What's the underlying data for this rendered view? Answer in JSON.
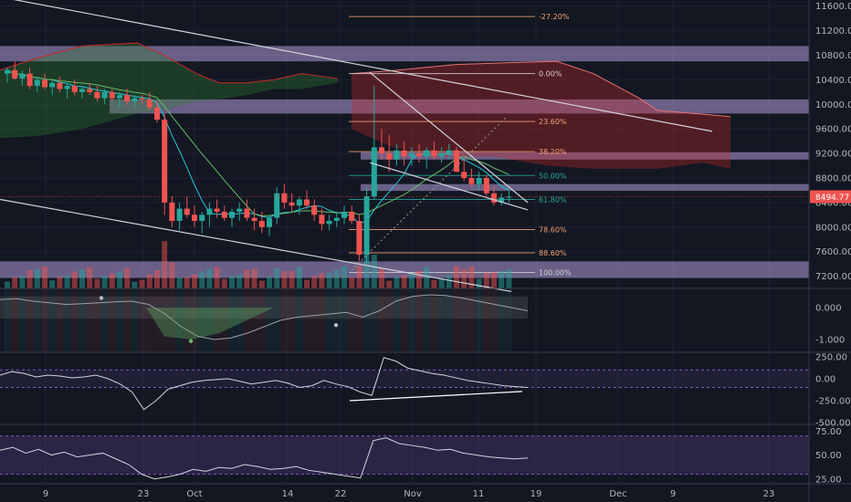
{
  "chart_data": [
    {
      "type": "candlestick",
      "title": "",
      "x_axis": {
        "tick_labels": [
          "9",
          "23",
          "Oct",
          "14",
          "22",
          "Nov",
          "11",
          "19",
          "Dec",
          "9",
          "23"
        ]
      },
      "y_axis": {
        "ylim": [
          7000,
          11700
        ],
        "tick_labels": [
          "11600.00",
          "11200.00",
          "10800.00",
          "10400.00",
          "10000.00",
          "9600.00",
          "9200.00",
          "8800.00",
          "8400.00",
          "8000.00",
          "7600.00",
          "7200.00"
        ]
      },
      "last_price": "8494.77",
      "last_price_value": 8494.77,
      "fibonacci_levels": [
        {
          "label": "-27.20%",
          "price": 11430,
          "color": "#f0a070"
        },
        {
          "label": "0.00%",
          "price": 10500,
          "color": "#d0d0d0"
        },
        {
          "label": "23.60%",
          "price": 9720,
          "color": "#f0a070"
        },
        {
          "label": "38.20%",
          "price": 9230,
          "color": "#f0a070"
        },
        {
          "label": "50.00%",
          "price": 8840,
          "color": "#26a69a"
        },
        {
          "label": "61.80%",
          "price": 8450,
          "color": "#26a69a"
        },
        {
          "label": "78.60%",
          "price": 7960,
          "color": "#f0a070"
        },
        {
          "label": "88.60%",
          "price": 7580,
          "color": "#f0a070"
        },
        {
          "label": "100.00%",
          "price": 7260,
          "color": "#d0d0d0"
        }
      ],
      "candles": [
        [
          10500,
          10600,
          10350,
          10560
        ],
        [
          10560,
          10700,
          10400,
          10420
        ],
        [
          10420,
          10550,
          10300,
          10500
        ],
        [
          10500,
          10600,
          10250,
          10300
        ],
        [
          10300,
          10450,
          10200,
          10400
        ],
        [
          10400,
          10500,
          10250,
          10280
        ],
        [
          10280,
          10400,
          10150,
          10350
        ],
        [
          10350,
          10450,
          10200,
          10250
        ],
        [
          10250,
          10350,
          10100,
          10300
        ],
        [
          10300,
          10400,
          10150,
          10200
        ],
        [
          10200,
          10300,
          10100,
          10250
        ],
        [
          10250,
          10350,
          10150,
          10200
        ],
        [
          10200,
          10300,
          10050,
          10100
        ],
        [
          10100,
          10250,
          10000,
          10200
        ],
        [
          10200,
          10250,
          10050,
          10100
        ],
        [
          10100,
          10200,
          9950,
          10150
        ],
        [
          10150,
          10250,
          10000,
          10050
        ],
        [
          10050,
          10150,
          9950,
          10100
        ],
        [
          10100,
          10150,
          10000,
          10080
        ],
        [
          10080,
          10200,
          9900,
          9950
        ],
        [
          9950,
          10050,
          9700,
          9750
        ],
        [
          9750,
          9850,
          8200,
          8400
        ],
        [
          8400,
          8500,
          8000,
          8100
        ],
        [
          8100,
          8400,
          7950,
          8300
        ],
        [
          8300,
          8500,
          8150,
          8200
        ],
        [
          8200,
          8350,
          8000,
          8100
        ],
        [
          8100,
          8250,
          7900,
          8200
        ],
        [
          8200,
          8400,
          8000,
          8300
        ],
        [
          8300,
          8450,
          8150,
          8250
        ],
        [
          8250,
          8350,
          8100,
          8150
        ],
        [
          8150,
          8300,
          8000,
          8250
        ],
        [
          8250,
          8400,
          8100,
          8300
        ],
        [
          8300,
          8450,
          8100,
          8150
        ],
        [
          8150,
          8300,
          7950,
          8100
        ],
        [
          8100,
          8250,
          7900,
          8000
        ],
        [
          8000,
          8200,
          7850,
          8150
        ],
        [
          8150,
          8650,
          8050,
          8550
        ],
        [
          8550,
          8700,
          8300,
          8400
        ],
        [
          8400,
          8550,
          8250,
          8350
        ],
        [
          8350,
          8500,
          8200,
          8450
        ],
        [
          8450,
          8600,
          8300,
          8350
        ],
        [
          8350,
          8450,
          8100,
          8200
        ],
        [
          8200,
          8300,
          7950,
          8050
        ],
        [
          8050,
          8200,
          7950,
          8100
        ],
        [
          8100,
          8250,
          8000,
          8150
        ],
        [
          8150,
          8350,
          8050,
          8250
        ],
        [
          8250,
          8350,
          8050,
          8100
        ],
        [
          8100,
          8200,
          7450,
          7550
        ],
        [
          7550,
          8650,
          7400,
          8500
        ],
        [
          8500,
          10300,
          8450,
          9300
        ],
        [
          9300,
          9600,
          9100,
          9200
        ],
        [
          9200,
          9500,
          8900,
          9100
        ],
        [
          9100,
          9350,
          9000,
          9250
        ],
        [
          9250,
          9400,
          9000,
          9150
        ],
        [
          9150,
          9300,
          9000,
          9200
        ],
        [
          9200,
          9350,
          9050,
          9150
        ],
        [
          9150,
          9300,
          8950,
          9250
        ],
        [
          9250,
          9400,
          9100,
          9150
        ],
        [
          9150,
          9300,
          9050,
          9200
        ],
        [
          9200,
          9350,
          9100,
          9250
        ],
        [
          9250,
          9300,
          8900,
          8900
        ],
        [
          8900,
          9100,
          8750,
          8800
        ],
        [
          8800,
          8950,
          8650,
          8700
        ],
        [
          8700,
          8900,
          8600,
          8800
        ],
        [
          8800,
          8850,
          8500,
          8550
        ],
        [
          8550,
          8650,
          8350,
          8400
        ],
        [
          8400,
          8550,
          8350,
          8480
        ],
        [
          8480,
          8600,
          8400,
          8495
        ]
      ]
    },
    {
      "type": "line",
      "title": "",
      "y_axis": {
        "ylim": [
          -1.4,
          0.6
        ],
        "tick_labels": [
          "0.000",
          "-1.000"
        ]
      }
    },
    {
      "type": "line",
      "title": "",
      "y_axis": {
        "ylim": [
          -520,
          300
        ],
        "tick_labels": [
          "250.00",
          "0.00",
          "-250.00",
          "-500.00"
        ]
      }
    },
    {
      "type": "line",
      "title": "",
      "y_axis": {
        "ylim": [
          20,
          82
        ],
        "tick_labels": [
          "75.00",
          "50.00",
          "25.00"
        ]
      }
    }
  ]
}
